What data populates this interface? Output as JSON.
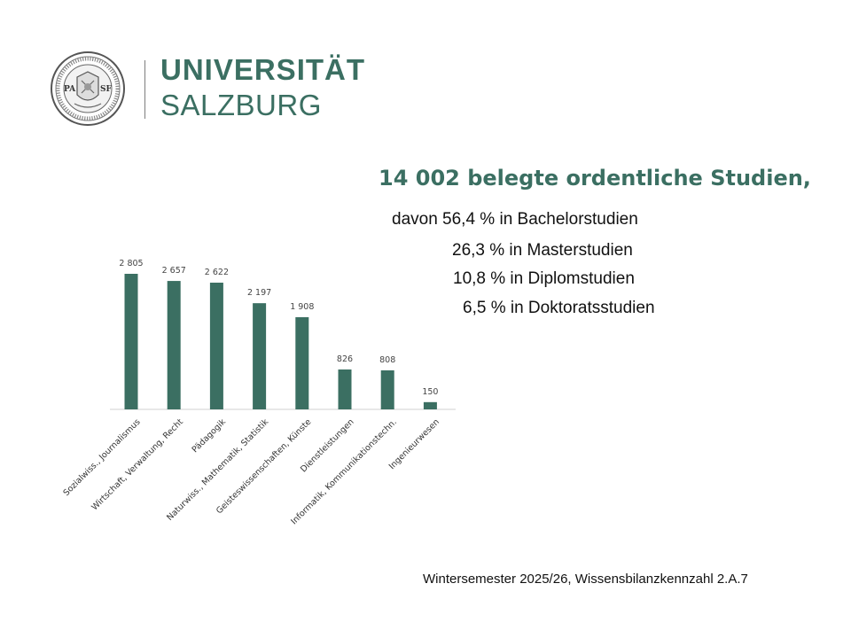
{
  "logo": {
    "line1": "UNIVERSITÄT",
    "line2": "SALZBURG",
    "seal_left_letters": "PA",
    "seal_right_letters": "SF",
    "brand_color": "#3b6f62"
  },
  "headline": "14 002 belegte ordentliche Studien,",
  "stats": [
    "davon 56,4 % in Bachelorstudien",
    "26,3 % in Masterstudien",
    "10,8 % in Diplomstudien",
    "6,5 % in Doktoratsstudien"
  ],
  "footnote": "Wintersemester 2025/26, Wissensbilanzkennzahl 2.A.7",
  "chart_data": {
    "type": "bar",
    "categories": [
      "Sozialwiss., Journalismus",
      "Wirtschaft, Verwaltung, Recht",
      "Pädagogik",
      "Naturwiss., Mathematik, Statistik",
      "Geisteswissenschaften, Künste",
      "Dienstleistungen",
      "Informatik, Kommunikationstechn.",
      "Ingenieurwesen"
    ],
    "values": [
      2805,
      2657,
      2622,
      2197,
      1908,
      826,
      808,
      150
    ],
    "value_labels": [
      "2 805",
      "2 657",
      "2 622",
      "2 197",
      "1 908",
      "826",
      "808",
      "150"
    ],
    "title": "",
    "xlabel": "",
    "ylabel": "",
    "ylim": [
      0,
      2805
    ],
    "grid": false,
    "bar_color": "#3b6f62",
    "axis_color": "#d0d0d0"
  }
}
